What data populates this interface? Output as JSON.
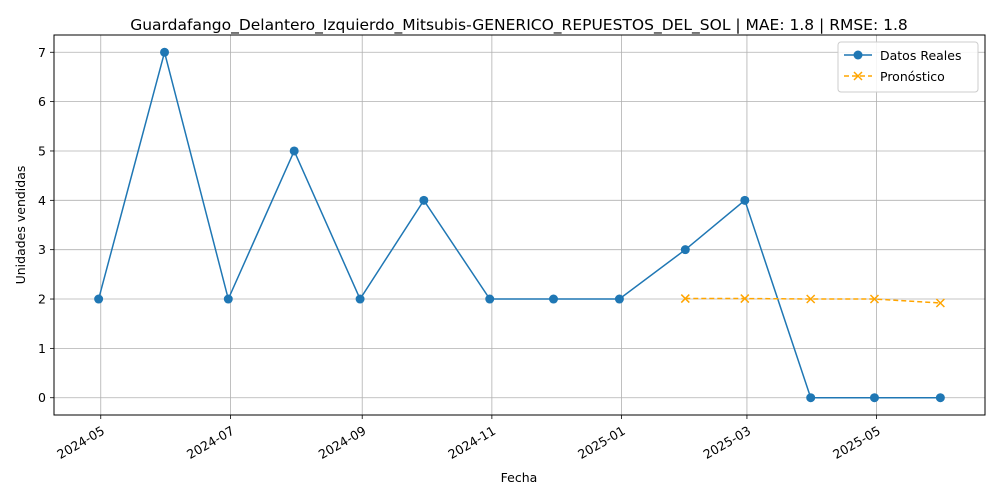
{
  "chart_data": {
    "type": "line",
    "title": "Guardafango_Delantero_Izquierdo_Mitsubis-GENERICO_REPUESTOS_DEL_SOL | MAE: 1.8 | RMSE: 1.8",
    "xlabel": "Fecha",
    "ylabel": "Unidades vendidas",
    "ylim": [
      -0.35,
      7.35
    ],
    "xlim": [
      "2024-04-09",
      "2025-06-21"
    ],
    "grid": true,
    "legend_position": "top-right",
    "x_ticks": [
      "2024-05-01",
      "2024-07-01",
      "2024-09-01",
      "2024-11-01",
      "2025-01-01",
      "2025-03-01",
      "2025-05-01"
    ],
    "x_tick_labels": [
      "2024-05",
      "2024-07",
      "2024-09",
      "2024-11",
      "2025-01",
      "2025-03",
      "2025-05"
    ],
    "y_ticks": [
      0,
      1,
      2,
      3,
      4,
      5,
      6,
      7
    ],
    "y_tick_labels": [
      "0",
      "1",
      "2",
      "3",
      "4",
      "5",
      "6",
      "7"
    ],
    "series": [
      {
        "name": "Datos Reales",
        "color": "#1f77b4",
        "marker": "circle",
        "line_style": "solid",
        "x": [
          "2024-04-30",
          "2024-05-31",
          "2024-06-30",
          "2024-07-31",
          "2024-08-31",
          "2024-09-30",
          "2024-10-31",
          "2024-11-30",
          "2024-12-31",
          "2025-01-31",
          "2025-02-28",
          "2025-03-31",
          "2025-04-30",
          "2025-05-31"
        ],
        "values": [
          2,
          7,
          2,
          5,
          2,
          4,
          2,
          2,
          2,
          3,
          4,
          0,
          0,
          0
        ]
      },
      {
        "name": "Pronóstico",
        "color": "#ffa500",
        "marker": "x",
        "line_style": "dashed",
        "x": [
          "2025-01-31",
          "2025-02-28",
          "2025-03-31",
          "2025-04-30",
          "2025-05-31"
        ],
        "values": [
          2.01,
          2.01,
          2.0,
          2.0,
          1.92
        ]
      }
    ]
  }
}
